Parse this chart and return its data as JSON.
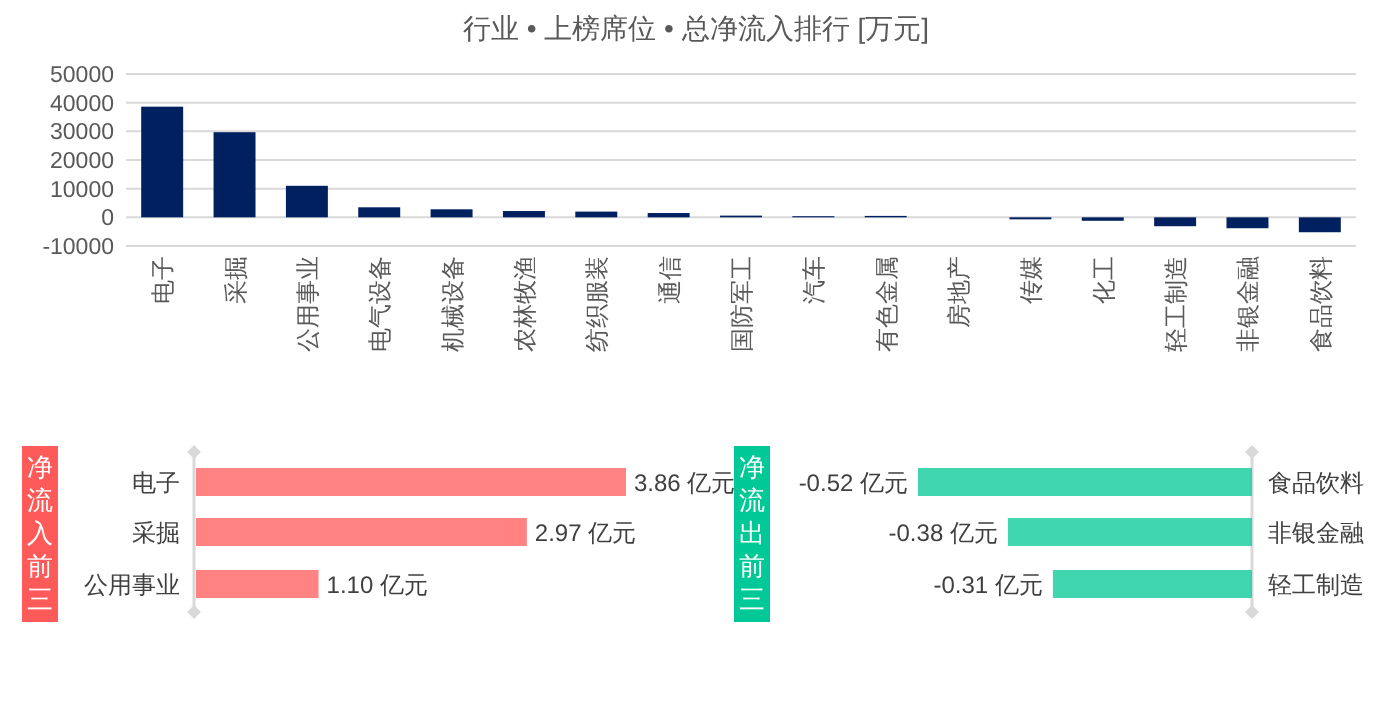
{
  "chart_data": [
    {
      "type": "bar",
      "title": "行业 • 上榜席位 • 总净流入排行 [万元]",
      "categories": [
        "电子",
        "采掘",
        "公用事业",
        "电气设备",
        "机械设备",
        "农林牧渔",
        "纺织服装",
        "通信",
        "国防军工",
        "汽车",
        "有色金属",
        "房地产",
        "传媒",
        "化工",
        "轻工制造",
        "非银金融",
        "食品饮料"
      ],
      "values": [
        38600,
        29700,
        11000,
        3500,
        2800,
        2200,
        2000,
        1500,
        600,
        400,
        500,
        0,
        -700,
        -1200,
        -3100,
        -3800,
        -5200
      ],
      "color": "#002060",
      "ylim": [
        -10000,
        50000
      ],
      "yticks": [
        -10000,
        0,
        10000,
        20000,
        30000,
        40000,
        50000
      ],
      "grid": "y"
    },
    {
      "type": "bar",
      "orientation": "horizontal",
      "title": "净流入前三",
      "categories": [
        "电子",
        "采掘",
        "公用事业"
      ],
      "values": [
        3.86,
        2.97,
        1.1
      ],
      "value_labels": [
        "3.86 亿元",
        "2.97 亿元",
        "1.10 亿元"
      ],
      "color": "#ff5a5a"
    },
    {
      "type": "bar",
      "orientation": "horizontal",
      "title": "净流出前三",
      "categories": [
        "食品饮料",
        "非银金融",
        "轻工制造"
      ],
      "values": [
        -0.52,
        -0.38,
        -0.31
      ],
      "value_labels": [
        "-0.52 亿元",
        "-0.38 亿元",
        "-0.31 亿元"
      ],
      "color": "#00c896"
    }
  ]
}
